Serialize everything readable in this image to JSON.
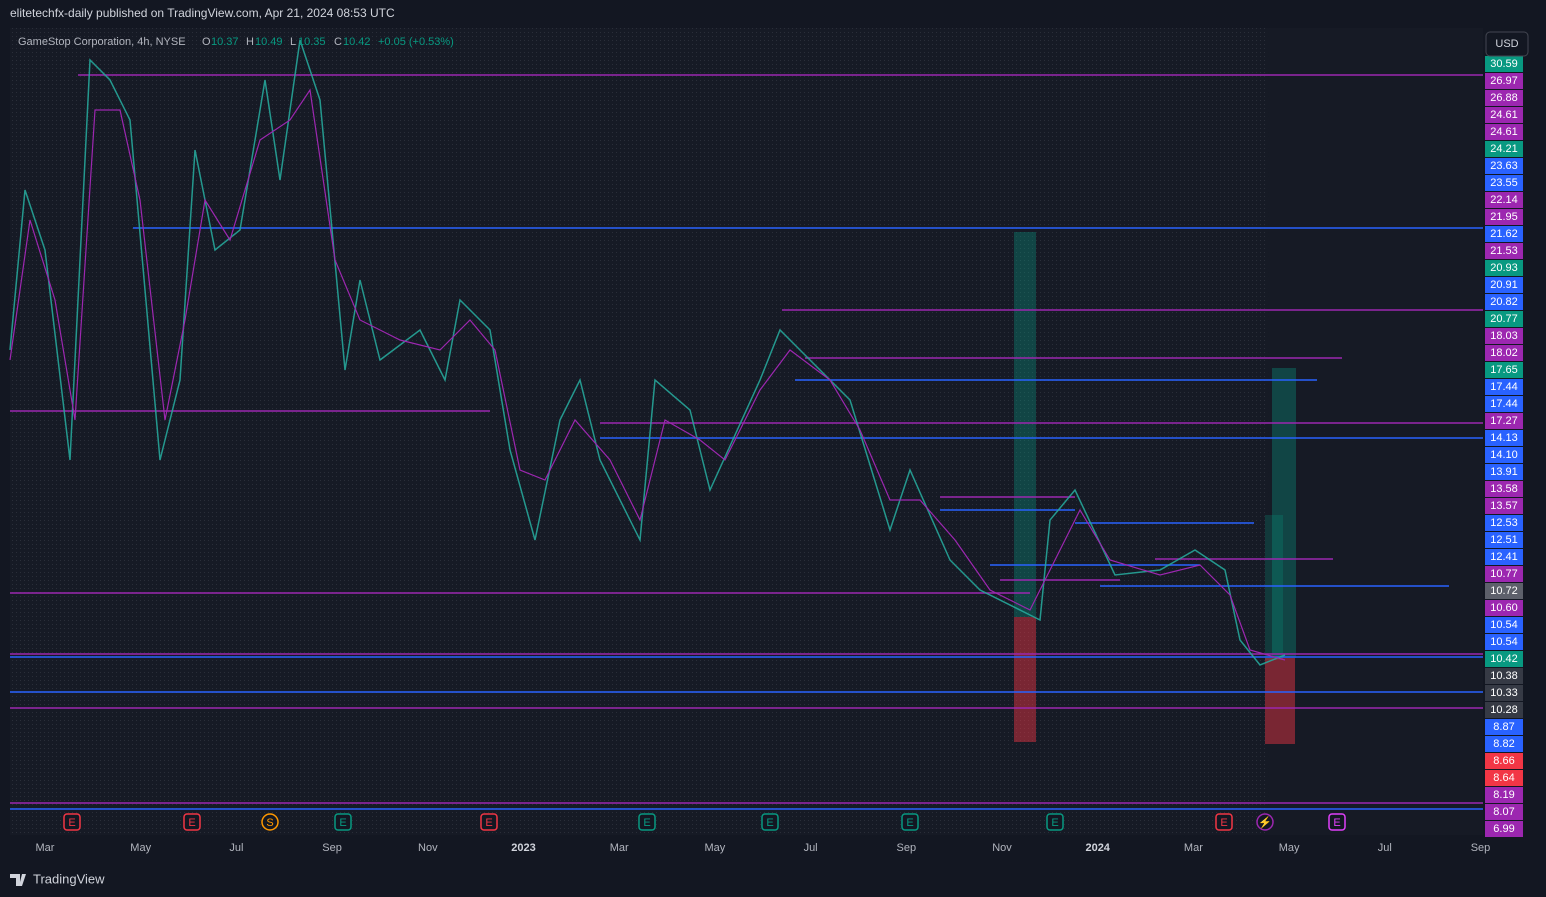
{
  "header": {
    "title": "elitetechfx-daily published on TradingView.com, Apr 21, 2024 08:53 UTC"
  },
  "legend": {
    "symbol": "GameStop Corporation, 4h, NYSE",
    "open_key": "O",
    "open": "10.37",
    "high_key": "H",
    "high": "10.49",
    "low_key": "L",
    "low": "10.35",
    "close_key": "C",
    "close": "10.42",
    "change": "+0.05 (+0.53%)"
  },
  "currency": "USD",
  "price_labels": [
    {
      "text": "30.59",
      "color": "#089981"
    },
    {
      "text": "26.97",
      "color": "#9c27b0"
    },
    {
      "text": "26.88",
      "color": "#9c27b0"
    },
    {
      "text": "24.61",
      "color": "#9c27b0"
    },
    {
      "text": "24.61",
      "color": "#9c27b0"
    },
    {
      "text": "24.21",
      "color": "#089981"
    },
    {
      "text": "23.63",
      "color": "#2962ff"
    },
    {
      "text": "23.55",
      "color": "#2962ff"
    },
    {
      "text": "22.14",
      "color": "#9c27b0"
    },
    {
      "text": "21.95",
      "color": "#9c27b0"
    },
    {
      "text": "21.62",
      "color": "#2962ff"
    },
    {
      "text": "21.53",
      "color": "#9c27b0"
    },
    {
      "text": "20.93",
      "color": "#089981"
    },
    {
      "text": "20.91",
      "color": "#2962ff"
    },
    {
      "text": "20.82",
      "color": "#2962ff"
    },
    {
      "text": "20.77",
      "color": "#089981"
    },
    {
      "text": "18.03",
      "color": "#9c27b0"
    },
    {
      "text": "18.02",
      "color": "#9c27b0"
    },
    {
      "text": "17.65",
      "color": "#089981"
    },
    {
      "text": "17.44",
      "color": "#2962ff"
    },
    {
      "text": "17.44",
      "color": "#2962ff"
    },
    {
      "text": "17.27",
      "color": "#9c27b0"
    },
    {
      "text": "14.13",
      "color": "#2962ff"
    },
    {
      "text": "14.10",
      "color": "#2962ff"
    },
    {
      "text": "13.91",
      "color": "#2962ff"
    },
    {
      "text": "13.58",
      "color": "#9c27b0"
    },
    {
      "text": "13.57",
      "color": "#9c27b0"
    },
    {
      "text": "12.53",
      "color": "#2962ff"
    },
    {
      "text": "12.51",
      "color": "#2962ff"
    },
    {
      "text": "12.41",
      "color": "#2962ff"
    },
    {
      "text": "10.77",
      "color": "#9c27b0"
    },
    {
      "text": "10.72",
      "color": "#5d606b"
    },
    {
      "text": "10.60",
      "color": "#9c27b0"
    },
    {
      "text": "10.54",
      "color": "#2962ff"
    },
    {
      "text": "10.54",
      "color": "#2962ff"
    },
    {
      "text": "10.42",
      "color": "#089981"
    },
    {
      "text": "10.38",
      "color": "#363a45"
    },
    {
      "text": "10.33",
      "color": "#363a45"
    },
    {
      "text": "10.28",
      "color": "#363a45"
    },
    {
      "text": "8.87",
      "color": "#2962ff"
    },
    {
      "text": "8.82",
      "color": "#2962ff"
    },
    {
      "text": "8.66",
      "color": "#f23645"
    },
    {
      "text": "8.64",
      "color": "#f23645"
    },
    {
      "text": "8.19",
      "color": "#9c27b0"
    },
    {
      "text": "8.07",
      "color": "#9c27b0"
    },
    {
      "text": "6.99",
      "color": "#9c27b0"
    }
  ],
  "time_labels": [
    "Mar",
    "May",
    "Jul",
    "Sep",
    "Nov",
    "2023",
    "Mar",
    "May",
    "Jul",
    "Sep",
    "Nov",
    "2024",
    "Mar",
    "May",
    "Jul",
    "Sep"
  ],
  "events": [
    {
      "text": "E",
      "color": "#f23645"
    },
    {
      "text": "E",
      "color": "#f23645"
    },
    {
      "text": "S",
      "color": "#ff9800"
    },
    {
      "text": "E",
      "color": "#089981"
    },
    {
      "text": "E",
      "color": "#f23645"
    },
    {
      "text": "E",
      "color": "#089981"
    },
    {
      "text": "E",
      "color": "#089981"
    },
    {
      "text": "E",
      "color": "#089981"
    },
    {
      "text": "E",
      "color": "#089981"
    },
    {
      "text": "E",
      "color": "#f23645"
    },
    {
      "text": "⚡",
      "color": "#9c27b0"
    },
    {
      "text": "E",
      "color": "#e040fb"
    }
  ],
  "footer": {
    "brand": "TradingView"
  }
}
